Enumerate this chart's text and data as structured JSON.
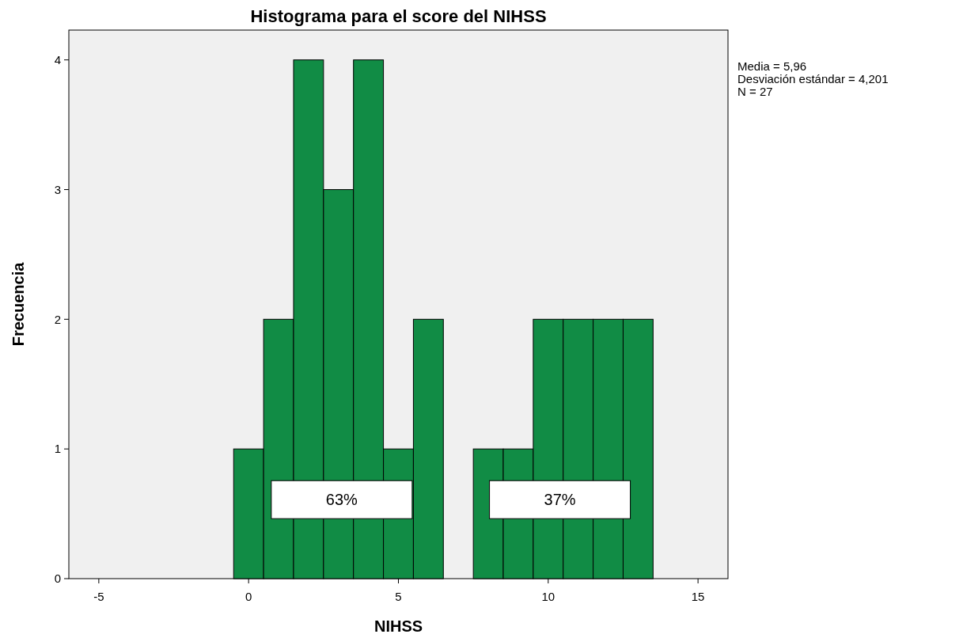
{
  "chart_data": {
    "type": "histogram",
    "title": "Histograma para el score del NIHSS",
    "xlabel": "NIHSS",
    "ylabel": "Frecuencia",
    "bins": [
      -0.5,
      0.5,
      1.5,
      2.5,
      3.5,
      4.5,
      5.5,
      6.5,
      7.5,
      8.5,
      9.5,
      10.5,
      11.5,
      12.5,
      13.5
    ],
    "values": [
      1,
      2,
      4,
      3,
      4,
      1,
      2,
      0,
      1,
      1,
      2,
      2,
      2,
      2
    ],
    "color": "#118c45",
    "xlim": [
      -6,
      16
    ],
    "xticks": [
      -5,
      0,
      5,
      10,
      15
    ],
    "ylim": [
      0,
      4.23
    ],
    "yticks": [
      0,
      1,
      2,
      3,
      4
    ],
    "grid": false,
    "annotations": [
      "Media = 5,96",
      "Desviación estándar = 4,201",
      "N = 27",
      "63%",
      "37%"
    ]
  }
}
